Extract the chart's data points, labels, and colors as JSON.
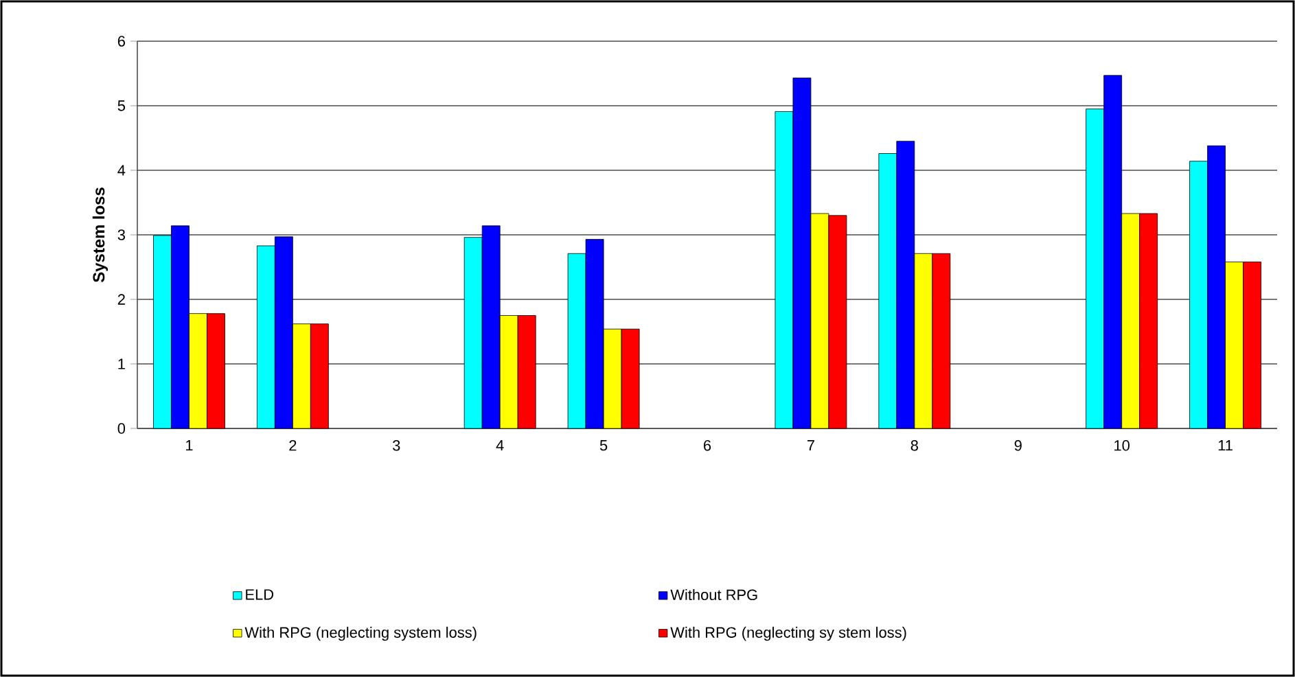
{
  "chart_data": {
    "type": "bar",
    "ylabel": "System loss",
    "categories": [
      "1",
      "2",
      "3",
      "4",
      "5",
      "6",
      "7",
      "8",
      "9",
      "10",
      "11"
    ],
    "series": [
      {
        "name": "ELD",
        "color": "#00ffff",
        "values": [
          2.99,
          2.83,
          null,
          2.96,
          2.71,
          null,
          4.91,
          4.26,
          null,
          4.95,
          4.14
        ]
      },
      {
        "name": "Without RPG",
        "color": "#0000ff",
        "values": [
          3.14,
          2.97,
          null,
          3.14,
          2.93,
          null,
          5.43,
          4.45,
          null,
          5.47,
          4.38
        ]
      },
      {
        "name": "With RPG (neglecting system loss)",
        "color": "#ffff00",
        "values": [
          1.78,
          1.62,
          null,
          1.75,
          1.54,
          null,
          3.33,
          2.71,
          null,
          3.33,
          2.58
        ]
      },
      {
        "name": "With RPG (neglecting sy stem loss)",
        "color": "#ff0000",
        "values": [
          1.78,
          1.62,
          null,
          1.75,
          1.54,
          null,
          3.3,
          2.71,
          null,
          3.33,
          2.58
        ]
      }
    ],
    "ylim": [
      0,
      6
    ],
    "yticks": [
      0,
      1,
      2,
      3,
      4,
      5,
      6
    ],
    "grid": "y",
    "legend": "bottom"
  }
}
